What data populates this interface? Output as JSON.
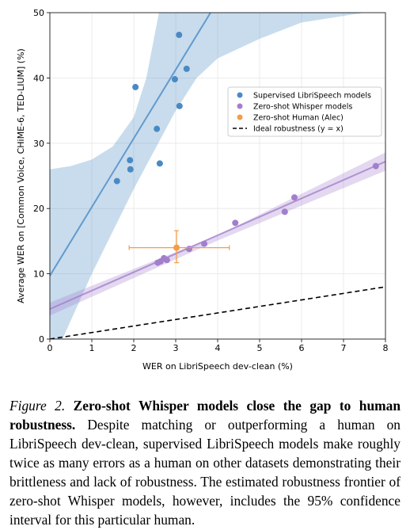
{
  "chart_data": {
    "type": "scatter",
    "xlabel": "WER on LibriSpeech dev-clean (%)",
    "ylabel": "Average WER on [Common Voice, CHiME-6, TED-LIUM] (%)",
    "xlim": [
      0,
      8
    ],
    "ylim": [
      0,
      50
    ],
    "xticks": [
      0,
      1,
      2,
      3,
      4,
      5,
      6,
      7,
      8
    ],
    "yticks": [
      0,
      10,
      20,
      30,
      40,
      50
    ],
    "grid": true,
    "legend": "upper right",
    "series": [
      {
        "name": "Supervised LibriSpeech models",
        "color": "#4a8ac4",
        "x": [
          1.6,
          1.91,
          1.92,
          2.04,
          2.55,
          2.62,
          2.98,
          3.08,
          3.09,
          3.26
        ],
        "y": [
          24.2,
          27.4,
          26.0,
          38.6,
          32.2,
          26.9,
          39.8,
          46.6,
          35.7,
          41.4
        ],
        "fit": {
          "x": [
            0,
            3.83
          ],
          "y": [
            9.7,
            50
          ]
        },
        "band": {
          "upper": {
            "x": [
              0,
              0.5,
              1,
              1.5,
              2,
              2.3,
              2.6
            ],
            "y": [
              26,
              26.5,
              27.5,
              29.5,
              34,
              40,
              50
            ]
          },
          "lower": {
            "x": [
              0,
              0.3,
              1,
              2,
              2.5,
              3,
              3.5,
              4,
              5,
              6,
              7.5
            ],
            "y": [
              -3,
              0,
              10,
              23,
              29,
              35,
              40,
              43,
              46,
              48.5,
              50
            ]
          }
        }
      },
      {
        "name": "Zero-shot Whisper models",
        "color": "#a27fcc",
        "x": [
          2.57,
          2.64,
          2.72,
          2.79,
          3.32,
          3.68,
          4.42,
          5.6,
          5.83,
          7.77
        ],
        "y": [
          11.7,
          11.9,
          12.4,
          12.1,
          13.8,
          14.6,
          17.8,
          19.5,
          21.7,
          26.5
        ],
        "fit": {
          "x": [
            0,
            8
          ],
          "y": [
            4.6,
            27.2
          ]
        },
        "band": {
          "upper": {
            "x": [
              0,
              4,
              8
            ],
            "y": [
              5.6,
              15.9,
              28.6
            ]
          },
          "lower": {
            "x": [
              0,
              4,
              8
            ],
            "y": [
              3.6,
              15.1,
              25.8
            ]
          }
        }
      },
      {
        "name": "Zero-shot Human (Alec)",
        "color": "#f59d45",
        "x": [
          3.02
        ],
        "y": [
          14.0
        ],
        "xerr": [
          1.13,
          1.26
        ],
        "yerr": [
          2.3,
          2.6
        ]
      },
      {
        "name": "Ideal robustness (y = x)",
        "color": "#000000",
        "style": "dashed",
        "x": [
          0,
          8
        ],
        "y": [
          0,
          8
        ]
      }
    ]
  },
  "caption": {
    "label": "Figure 2.",
    "title": "Zero-shot Whisper models close the gap to human robustness.",
    "text": "Despite matching or outperforming a human on LibriSpeech dev-clean, supervised LibriSpeech models make roughly twice as many errors as a human on other datasets demonstrating their brittleness and lack of robustness. The estimated robustness frontier of zero-shot Whisper models, however, includes the 95% confidence interval for this particular human."
  }
}
